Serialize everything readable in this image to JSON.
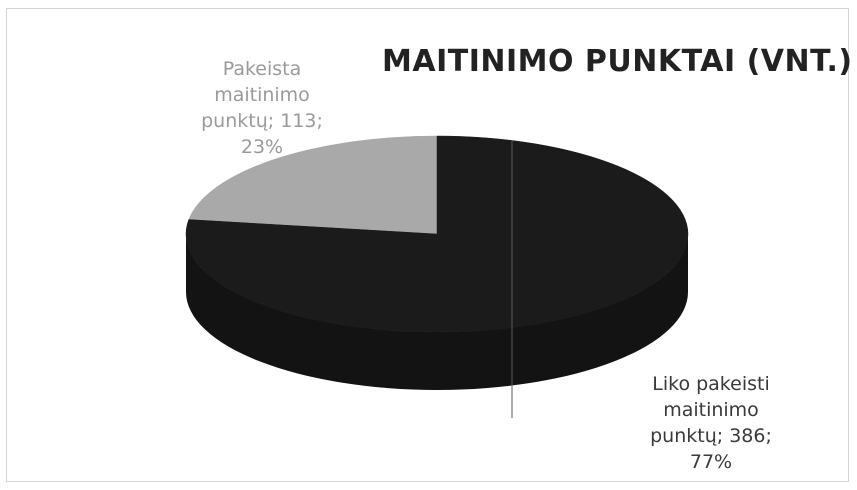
{
  "chart_data": {
    "type": "pie",
    "title": "MAITINIMO PUNKTAI (VNT.)",
    "slices": [
      {
        "name": "Pakeista maitinimo punktų",
        "value": 113,
        "percent": "23%",
        "label_lines": [
          "Pakeista",
          "maitinimo",
          "punktų; 113;",
          "23%"
        ],
        "color": "#a9a9a9"
      },
      {
        "name": "Liko pakeisti maitinimo punktų",
        "value": 386,
        "percent": "77%",
        "label_lines": [
          "Liko pakeisti",
          "maitinimo",
          "punktų; 386;",
          "77%"
        ],
        "color": "#1b1b1b"
      }
    ]
  }
}
